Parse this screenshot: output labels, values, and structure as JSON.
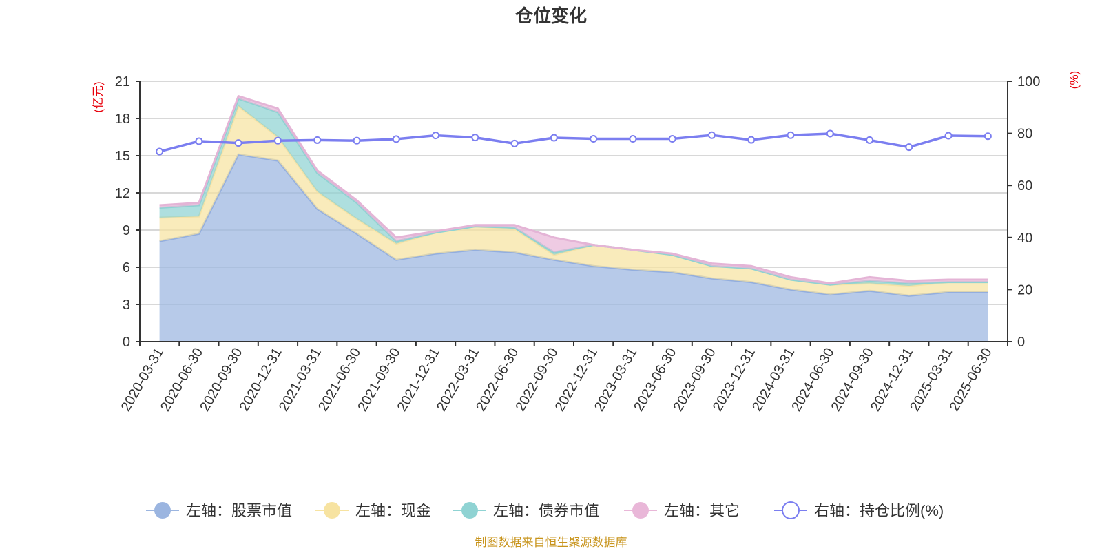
{
  "title": "仓位变化",
  "source_note": "制图数据来自恒生聚源数据库",
  "left_axis": {
    "unit": "(亿元)",
    "min": 0,
    "max": 21,
    "ticks": [
      0,
      3,
      6,
      9,
      12,
      15,
      18,
      21
    ]
  },
  "right_axis": {
    "unit": "(%)",
    "min": 0,
    "max": 100,
    "ticks": [
      0,
      20,
      40,
      60,
      80,
      100
    ]
  },
  "colors": {
    "stock": "#9bb5e0",
    "cash": "#f7e3a1",
    "bond": "#8fd3d3",
    "other": "#e9b7d8",
    "ratio": "#7b7ef0",
    "axis_unit": "#e8000b",
    "source": "#c8941c"
  },
  "legend": [
    {
      "key": "stock",
      "label": "左轴：股票市值"
    },
    {
      "key": "cash",
      "label": "左轴：现金"
    },
    {
      "key": "bond",
      "label": "左轴：债券市值"
    },
    {
      "key": "other",
      "label": "左轴：其它"
    },
    {
      "key": "ratio",
      "label": "右轴：持仓比例(%)"
    }
  ],
  "chart_data": {
    "type": "area",
    "title": "仓位变化",
    "grid": true,
    "legend_position": "bottom",
    "categories": [
      "2020-03-31",
      "2020-06-30",
      "2020-09-30",
      "2020-12-31",
      "2021-03-31",
      "2021-06-30",
      "2021-09-30",
      "2021-12-31",
      "2022-03-31",
      "2022-06-30",
      "2022-09-30",
      "2022-12-31",
      "2023-03-31",
      "2023-06-30",
      "2023-09-30",
      "2023-12-31",
      "2024-03-31",
      "2024-06-30",
      "2024-09-30",
      "2024-12-31",
      "2025-03-31",
      "2025-06-30"
    ],
    "series": [
      {
        "name": "左轴：股票市值",
        "axis": "left",
        "stacked": true,
        "values": [
          8.1,
          8.7,
          15.1,
          14.6,
          10.7,
          8.7,
          6.6,
          7.1,
          7.4,
          7.2,
          6.6,
          6.1,
          5.8,
          5.6,
          5.1,
          4.8,
          4.2,
          3.8,
          4.1,
          3.7,
          4.0,
          4.0
        ]
      },
      {
        "name": "左轴：现金",
        "axis": "left",
        "stacked": true,
        "values": [
          1.9,
          1.4,
          3.9,
          1.9,
          1.4,
          1.2,
          1.3,
          1.7,
          1.9,
          1.9,
          0.4,
          1.7,
          1.6,
          1.4,
          1.0,
          1.1,
          0.8,
          0.8,
          0.6,
          0.8,
          0.8,
          0.8
        ]
      },
      {
        "name": "左轴：债券市值",
        "axis": "left",
        "stacked": true,
        "values": [
          0.8,
          0.9,
          0.6,
          2.0,
          1.5,
          1.3,
          0.2,
          0.0,
          0.0,
          0.1,
          0.2,
          0.0,
          0.0,
          0.0,
          0.0,
          0.0,
          0.0,
          0.0,
          0.2,
          0.2,
          0.0,
          0.0
        ]
      },
      {
        "name": "左轴：其它",
        "axis": "left",
        "stacked": true,
        "values": [
          0.2,
          0.2,
          0.2,
          0.3,
          0.2,
          0.2,
          0.3,
          0.1,
          0.1,
          0.2,
          1.2,
          0.0,
          0.0,
          0.1,
          0.2,
          0.2,
          0.2,
          0.1,
          0.3,
          0.2,
          0.2,
          0.2
        ]
      },
      {
        "name": "右轴：持仓比例(%)",
        "axis": "right",
        "type": "line",
        "values": [
          73.0,
          77.0,
          76.3,
          77.2,
          77.4,
          77.2,
          77.8,
          79.2,
          78.4,
          76.1,
          78.3,
          77.9,
          77.9,
          77.9,
          79.3,
          77.5,
          79.3,
          79.9,
          77.4,
          74.7,
          79.1,
          78.9
        ]
      }
    ]
  }
}
